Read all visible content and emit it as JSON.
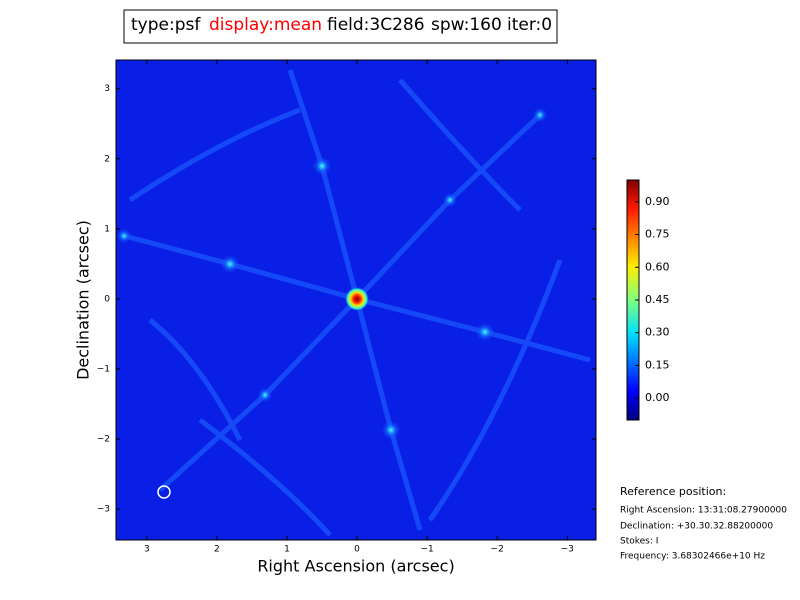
{
  "chart_data": {
    "type": "image",
    "title": [
      {
        "text": "type:psf",
        "color": "#000000"
      },
      {
        "text": "display:mean",
        "color": "#ff0000"
      },
      {
        "text": "field:3C286",
        "color": "#000000"
      },
      {
        "text": "spw:160",
        "color": "#000000"
      },
      {
        "text": "iter:0",
        "color": "#000000"
      }
    ],
    "xlabel": "Right Ascension (arcsec)",
    "ylabel": "Declination (arcsec)",
    "xlim": [
      3.44,
      -3.41
    ],
    "ylim": [
      -3.44,
      3.41
    ],
    "xticks": [
      3,
      2,
      1,
      0,
      {
        "value": -1,
        "label": "−1"
      },
      {
        "value": -2,
        "label": "−2"
      },
      {
        "value": -3,
        "label": "−3"
      }
    ],
    "yticks": [
      {
        "value": -3,
        "label": "−3"
      },
      {
        "value": -2,
        "label": "−2"
      },
      {
        "value": -1,
        "label": "−1"
      },
      0,
      1,
      2,
      3
    ],
    "colormap": "jet",
    "colorbar": {
      "lim": [
        -0.1,
        1.0
      ],
      "ticks": [
        {
          "value": 0,
          "label": "0.00"
        },
        {
          "value": 0.15,
          "label": "0.15"
        },
        {
          "value": 0.3,
          "label": "0.30"
        },
        {
          "value": 0.45,
          "label": "0.45"
        },
        {
          "value": 0.6,
          "label": "0.60"
        },
        {
          "value": 0.75,
          "label": "0.75"
        },
        {
          "value": 0.9,
          "label": "0.90"
        }
      ]
    },
    "reference": {
      "heading": "Reference position:",
      "lines": [
        "Right Ascension: 13:31:08.27900000",
        "Declination: +30.30.32.88200000",
        "Stokes: I",
        "Frequency: 3.68302466e+10 Hz"
      ]
    }
  }
}
